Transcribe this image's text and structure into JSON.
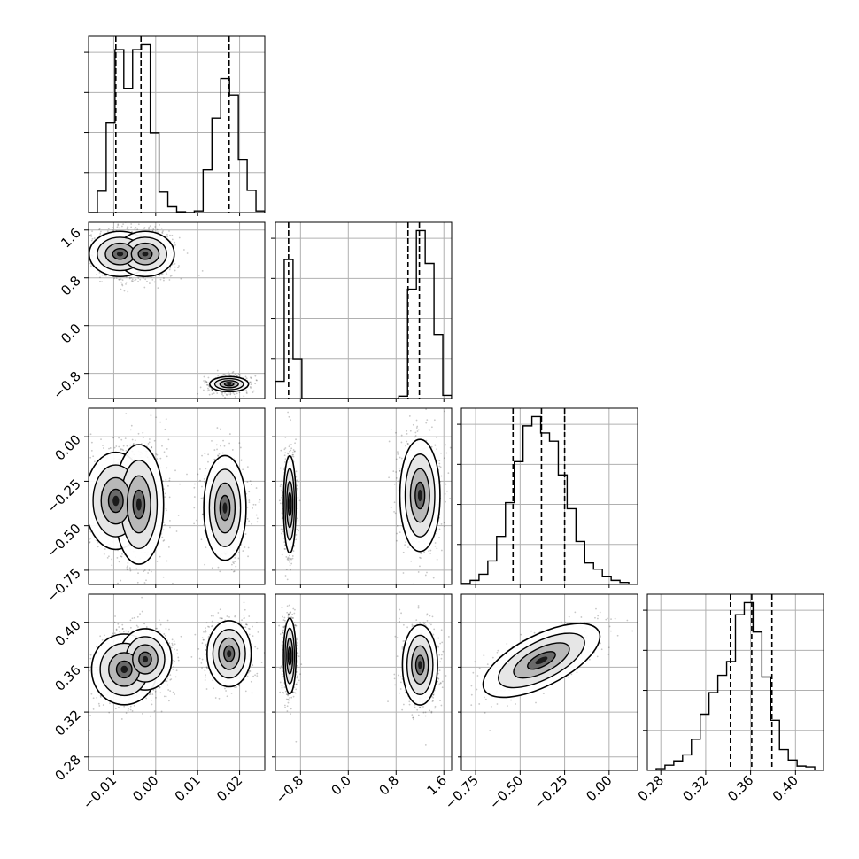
{
  "chart_data": {
    "type": "corner",
    "parameters": 4,
    "grid": true,
    "colors": {
      "line": "#000000",
      "grid": "#b0b0b0",
      "background": "#ffffff"
    },
    "axes": [
      {
        "lim": [
          -0.016,
          0.026
        ],
        "ticks": [
          -0.01,
          0.0,
          0.01,
          0.02
        ],
        "tick_labels": [
          "−0.01",
          "0.00",
          "0.01",
          "0.02"
        ]
      },
      {
        "lim": [
          -1.22,
          1.73
        ],
        "ticks": [
          -0.8,
          0.0,
          0.8,
          1.6
        ],
        "tick_labels": [
          "−0.8",
          "0.0",
          "0.8",
          "1.6"
        ]
      },
      {
        "lim": [
          -0.83,
          0.16
        ],
        "ticks": [
          -0.75,
          -0.5,
          -0.25,
          0.0
        ],
        "tick_labels": [
          "−0.75",
          "−0.50",
          "−0.25",
          "0.00"
        ]
      },
      {
        "lim": [
          0.268,
          0.425
        ],
        "ticks": [
          0.28,
          0.32,
          0.36,
          0.4
        ],
        "tick_labels": [
          "0.28",
          "0.32",
          "0.36",
          "0.40"
        ]
      }
    ],
    "histograms": [
      {
        "param": 0,
        "quantiles": [
          -0.0095,
          -0.0035,
          0.0175
        ],
        "bins": [
          -0.016,
          -0.0139,
          -0.0118,
          -0.0097,
          -0.0076,
          -0.0055,
          -0.0034,
          -0.0013,
          0.0008,
          0.0029,
          0.005,
          0.0071,
          0.0092,
          0.0113,
          0.0134,
          0.0155,
          0.0176,
          0.0197,
          0.0218,
          0.0239,
          0.026
        ],
        "counts": [
          0,
          26,
          109,
          198,
          151,
          198,
          204,
          97,
          25,
          7,
          1,
          0,
          2,
          52,
          115,
          163,
          143,
          64,
          27,
          2
        ]
      },
      {
        "param": 1,
        "quantiles": [
          -1.0,
          1.0,
          1.19
        ],
        "bins": [
          -1.22,
          -1.0725,
          -0.925,
          -0.7775,
          -0.63,
          -0.4825,
          -0.335,
          -0.1875,
          -0.04,
          0.1075,
          0.255,
          0.4025,
          0.55,
          0.6975,
          0.845,
          0.9925,
          1.14,
          1.2875,
          1.435,
          1.5825,
          1.73
        ],
        "counts": [
          22,
          178,
          51,
          0,
          0,
          0,
          0,
          0,
          0,
          0,
          0,
          0,
          0,
          0,
          3,
          140,
          215,
          173,
          82,
          4
        ]
      },
      {
        "param": 2,
        "quantiles": [
          -0.54,
          -0.38,
          -0.25
        ],
        "bins": [
          -0.83,
          -0.7805,
          -0.731,
          -0.6815,
          -0.632,
          -0.5825,
          -0.533,
          -0.4835,
          -0.434,
          -0.3845,
          -0.335,
          -0.2855,
          -0.236,
          -0.1865,
          -0.137,
          -0.0875,
          -0.038,
          0.0115,
          0.061,
          0.1105,
          0.16
        ],
        "counts": [
          1,
          4,
          10,
          23,
          47,
          80,
          120,
          155,
          164,
          148,
          140,
          107,
          74,
          42,
          21,
          15,
          8,
          4,
          2,
          0
        ]
      },
      {
        "param": 3,
        "quantiles": [
          0.342,
          0.361,
          0.379
        ],
        "bins": [
          0.268,
          0.27585,
          0.2837,
          0.29155,
          0.2994,
          0.30725,
          0.3151,
          0.32295,
          0.3308,
          0.33865,
          0.3465,
          0.35435,
          0.3622,
          0.37005,
          0.3779,
          0.38575,
          0.3936,
          0.40145,
          0.4093,
          0.41715,
          0.425
        ],
        "counts": [
          0,
          2,
          6,
          11,
          18,
          36,
          65,
          90,
          110,
          126,
          180,
          194,
          160,
          108,
          58,
          24,
          12,
          5,
          4,
          0
        ]
      }
    ],
    "density_peaks": [
      {
        "x": 1,
        "y": 0,
        "peaks": [
          {
            "cx": -0.0085,
            "cy": 1.2,
            "sx": 0.0035,
            "sy": 0.18
          },
          {
            "cx": -0.0025,
            "cy": 1.2,
            "sx": 0.0033,
            "sy": 0.18
          },
          {
            "cx": 0.0175,
            "cy": -0.98,
            "sx": 0.0022,
            "sy": 0.06
          }
        ]
      },
      {
        "x": 2,
        "y": 0,
        "peaks": [
          {
            "cx": -0.0095,
            "cy": -0.36,
            "sx": 0.0035,
            "sy": 0.13
          },
          {
            "cx": -0.004,
            "cy": -0.38,
            "sx": 0.0028,
            "sy": 0.16
          },
          {
            "cx": 0.0165,
            "cy": -0.4,
            "sx": 0.0024,
            "sy": 0.14
          }
        ]
      },
      {
        "x": 2,
        "y": 1,
        "peaks": [
          {
            "cx": -0.98,
            "cy": -0.38,
            "sx": 0.05,
            "sy": 0.13
          },
          {
            "cx": 1.2,
            "cy": -0.33,
            "sx": 0.16,
            "sy": 0.15
          }
        ]
      },
      {
        "x": 3,
        "y": 0,
        "peaks": [
          {
            "cx": -0.0075,
            "cy": 0.358,
            "sx": 0.0037,
            "sy": 0.015
          },
          {
            "cx": -0.0025,
            "cy": 0.367,
            "sx": 0.003,
            "sy": 0.013
          },
          {
            "cx": 0.0175,
            "cy": 0.372,
            "sx": 0.0025,
            "sy": 0.014
          }
        ]
      },
      {
        "x": 3,
        "y": 1,
        "peaks": [
          {
            "cx": -0.98,
            "cy": 0.37,
            "sx": 0.05,
            "sy": 0.016
          },
          {
            "cx": 1.2,
            "cy": 0.362,
            "sx": 0.14,
            "sy": 0.017
          }
        ]
      },
      {
        "x": 3,
        "y": 2,
        "peaks": [
          {
            "cx": -0.38,
            "cy": 0.366,
            "sx": 0.14,
            "sy": 0.014,
            "rho": 0.65
          }
        ]
      }
    ]
  }
}
